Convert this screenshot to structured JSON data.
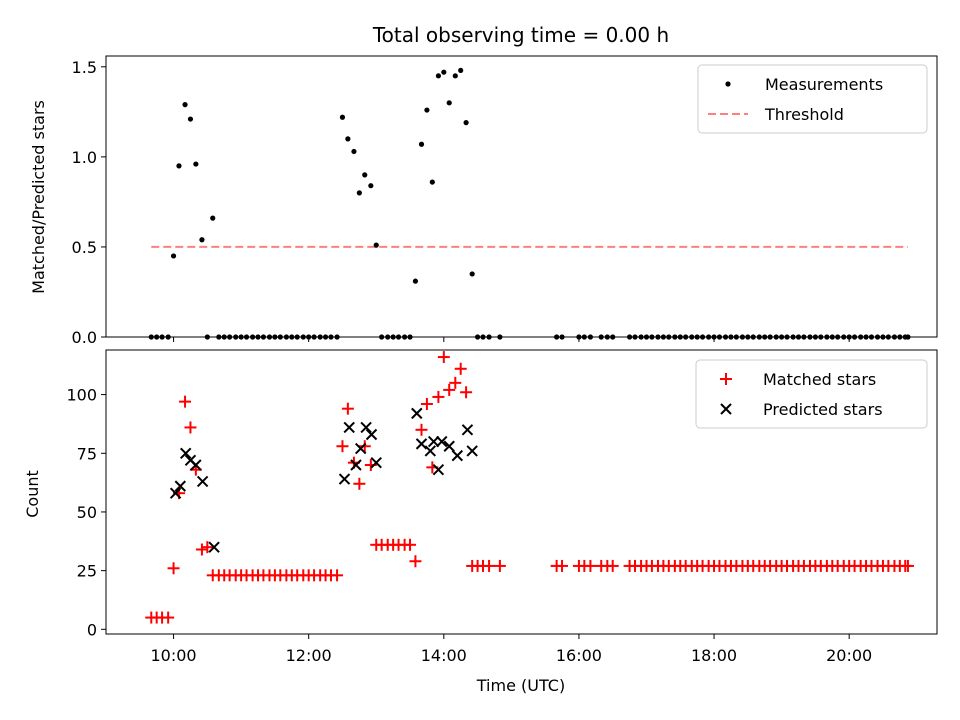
{
  "chart_data": {
    "title": "Total observing time = 0.00 h",
    "xlabel": "Time (UTC)",
    "x_ticks": [
      {
        "hour": 10,
        "label": "10:00"
      },
      {
        "hour": 12,
        "label": "12:00"
      },
      {
        "hour": 14,
        "label": "14:00"
      },
      {
        "hour": 16,
        "label": "16:00"
      },
      {
        "hour": 18,
        "label": "18:00"
      },
      {
        "hour": 20,
        "label": "20:00"
      }
    ],
    "xlim": [
      9.0,
      21.3
    ],
    "panels": [
      {
        "type": "scatter",
        "ylabel": "Matched/Predicted stars",
        "ylim": [
          0,
          1.56
        ],
        "y_ticks": [
          {
            "v": 0,
            "label": "0.0"
          },
          {
            "v": 0.5,
            "label": "0.5"
          },
          {
            "v": 1.0,
            "label": "1.0"
          },
          {
            "v": 1.5,
            "label": "1.5"
          }
        ],
        "legend": [
          "Measurements",
          "Threshold"
        ],
        "threshold": {
          "value": 0.5,
          "x_start": 9.67,
          "x_end": 20.87,
          "color": "#ff7f7f"
        },
        "measurements": {
          "color": "#000000",
          "x": [
            9.67,
            9.75,
            9.83,
            9.92,
            10.0,
            10.08,
            10.17,
            10.25,
            10.33,
            10.42,
            10.5,
            10.58,
            10.67,
            10.75,
            10.83,
            10.92,
            11.0,
            11.08,
            11.17,
            11.25,
            11.33,
            11.42,
            11.5,
            11.58,
            11.67,
            11.75,
            11.83,
            11.92,
            12.0,
            12.08,
            12.17,
            12.25,
            12.33,
            12.42,
            12.5,
            12.58,
            12.67,
            12.75,
            12.83,
            12.92,
            13.0,
            13.08,
            13.17,
            13.25,
            13.33,
            13.42,
            13.5,
            13.58,
            13.67,
            13.75,
            13.83,
            13.92,
            14.0,
            14.08,
            14.17,
            14.25,
            14.33,
            14.42,
            14.5,
            14.58,
            14.67,
            14.83,
            15.67,
            15.75,
            16.0,
            16.08,
            16.17,
            16.33,
            16.42,
            16.5,
            16.75,
            16.83,
            16.92,
            17.0,
            17.08,
            17.17,
            17.25,
            17.33,
            17.42,
            17.5,
            17.58,
            17.67,
            17.75,
            17.83,
            17.92,
            18.0,
            18.08,
            18.17,
            18.25,
            18.33,
            18.42,
            18.5,
            18.58,
            18.67,
            18.75,
            18.83,
            18.92,
            19.0,
            19.08,
            19.17,
            19.25,
            19.33,
            19.42,
            19.5,
            19.58,
            19.67,
            19.75,
            19.83,
            19.92,
            20.0,
            20.08,
            20.17,
            20.25,
            20.33,
            20.42,
            20.5,
            20.58,
            20.67,
            20.75,
            20.83,
            20.87
          ],
          "y": [
            0,
            0,
            0,
            0,
            0.45,
            0.95,
            1.29,
            1.21,
            0.96,
            0.54,
            0,
            0.66,
            0,
            0,
            0,
            0,
            0,
            0,
            0,
            0,
            0,
            0,
            0,
            0,
            0,
            0,
            0,
            0,
            0,
            0,
            0,
            0,
            0,
            0,
            1.22,
            1.1,
            1.03,
            0.8,
            0.9,
            0.84,
            0.51,
            0,
            0,
            0,
            0,
            0,
            0,
            0.31,
            1.07,
            1.26,
            0.86,
            1.45,
            1.47,
            1.3,
            1.45,
            1.48,
            1.19,
            0.35,
            0,
            0,
            0,
            0,
            0,
            0,
            0,
            0,
            0,
            0,
            0,
            0,
            0,
            0,
            0,
            0,
            0,
            0,
            0,
            0,
            0,
            0,
            0,
            0,
            0,
            0,
            0,
            0,
            0,
            0,
            0,
            0,
            0,
            0,
            0,
            0,
            0,
            0,
            0,
            0,
            0,
            0,
            0,
            0,
            0,
            0,
            0,
            0,
            0,
            0,
            0,
            0,
            0,
            0,
            0,
            0,
            0,
            0,
            0,
            0,
            0,
            0,
            0
          ]
        }
      },
      {
        "type": "scatter",
        "ylabel": "Count",
        "ylim": [
          -2,
          119
        ],
        "y_ticks": [
          {
            "v": 0,
            "label": "0"
          },
          {
            "v": 25,
            "label": "25"
          },
          {
            "v": 50,
            "label": "50"
          },
          {
            "v": 75,
            "label": "75"
          },
          {
            "v": 100,
            "label": "100"
          }
        ],
        "legend": [
          "Matched stars",
          "Predicted stars"
        ],
        "matched": {
          "color": "#ff0000",
          "x": [
            9.67,
            9.75,
            9.83,
            9.92,
            10.0,
            10.08,
            10.17,
            10.25,
            10.33,
            10.42,
            10.5,
            10.58,
            10.67,
            10.75,
            10.83,
            10.92,
            11.0,
            11.08,
            11.17,
            11.25,
            11.33,
            11.42,
            11.5,
            11.58,
            11.67,
            11.75,
            11.83,
            11.92,
            12.0,
            12.08,
            12.17,
            12.25,
            12.33,
            12.42,
            12.5,
            12.58,
            12.67,
            12.75,
            12.83,
            12.92,
            13.0,
            13.08,
            13.17,
            13.25,
            13.33,
            13.42,
            13.5,
            13.58,
            13.67,
            13.75,
            13.83,
            13.92,
            14.0,
            14.08,
            14.17,
            14.25,
            14.33,
            14.42,
            14.5,
            14.58,
            14.67,
            14.83,
            15.67,
            15.75,
            16.0,
            16.08,
            16.17,
            16.33,
            16.42,
            16.5,
            16.75,
            16.83,
            16.92,
            17.0,
            17.08,
            17.17,
            17.25,
            17.33,
            17.42,
            17.5,
            17.58,
            17.67,
            17.75,
            17.83,
            17.92,
            18.0,
            18.08,
            18.17,
            18.25,
            18.33,
            18.42,
            18.5,
            18.58,
            18.67,
            18.75,
            18.83,
            18.92,
            19.0,
            19.08,
            19.17,
            19.25,
            19.33,
            19.42,
            19.5,
            19.58,
            19.67,
            19.75,
            19.83,
            19.92,
            20.0,
            20.08,
            20.17,
            20.25,
            20.33,
            20.42,
            20.5,
            20.58,
            20.67,
            20.75,
            20.83,
            20.87
          ],
          "y": [
            5,
            5,
            5,
            5,
            26,
            58,
            97,
            86,
            68,
            34,
            35,
            23,
            23,
            23,
            23,
            23,
            23,
            23,
            23,
            23,
            23,
            23,
            23,
            23,
            23,
            23,
            23,
            23,
            23,
            23,
            23,
            23,
            23,
            23,
            78,
            94,
            71,
            62,
            78,
            70,
            36,
            36,
            36,
            36,
            36,
            36,
            36,
            29,
            85,
            96,
            69,
            99,
            116,
            102,
            105,
            111,
            101,
            27,
            27,
            27,
            27,
            27,
            27,
            27,
            27,
            27,
            27,
            27,
            27,
            27,
            27,
            27,
            27,
            27,
            27,
            27,
            27,
            27,
            27,
            27,
            27,
            27,
            27,
            27,
            27,
            27,
            27,
            27,
            27,
            27,
            27,
            27,
            27,
            27,
            27,
            27,
            27,
            27,
            27,
            27,
            27,
            27,
            27,
            27,
            27,
            27,
            27,
            27,
            27,
            27,
            27,
            27,
            27,
            27,
            27,
            27,
            27,
            27,
            27,
            27,
            27
          ]
        },
        "predicted": {
          "color": "#000000",
          "x": [
            10.03,
            10.1,
            10.18,
            10.25,
            10.33,
            10.43,
            10.6,
            12.53,
            12.6,
            12.7,
            12.77,
            12.85,
            12.93,
            13.0,
            13.6,
            13.67,
            13.8,
            13.85,
            13.92,
            13.97,
            14.08,
            14.2,
            14.35,
            14.42
          ],
          "y": [
            58,
            61,
            75,
            72,
            70,
            63,
            35,
            64,
            86,
            70,
            77,
            86,
            83,
            71,
            92,
            79,
            76,
            80,
            68,
            80,
            78,
            74,
            85,
            76
          ]
        }
      }
    ]
  }
}
